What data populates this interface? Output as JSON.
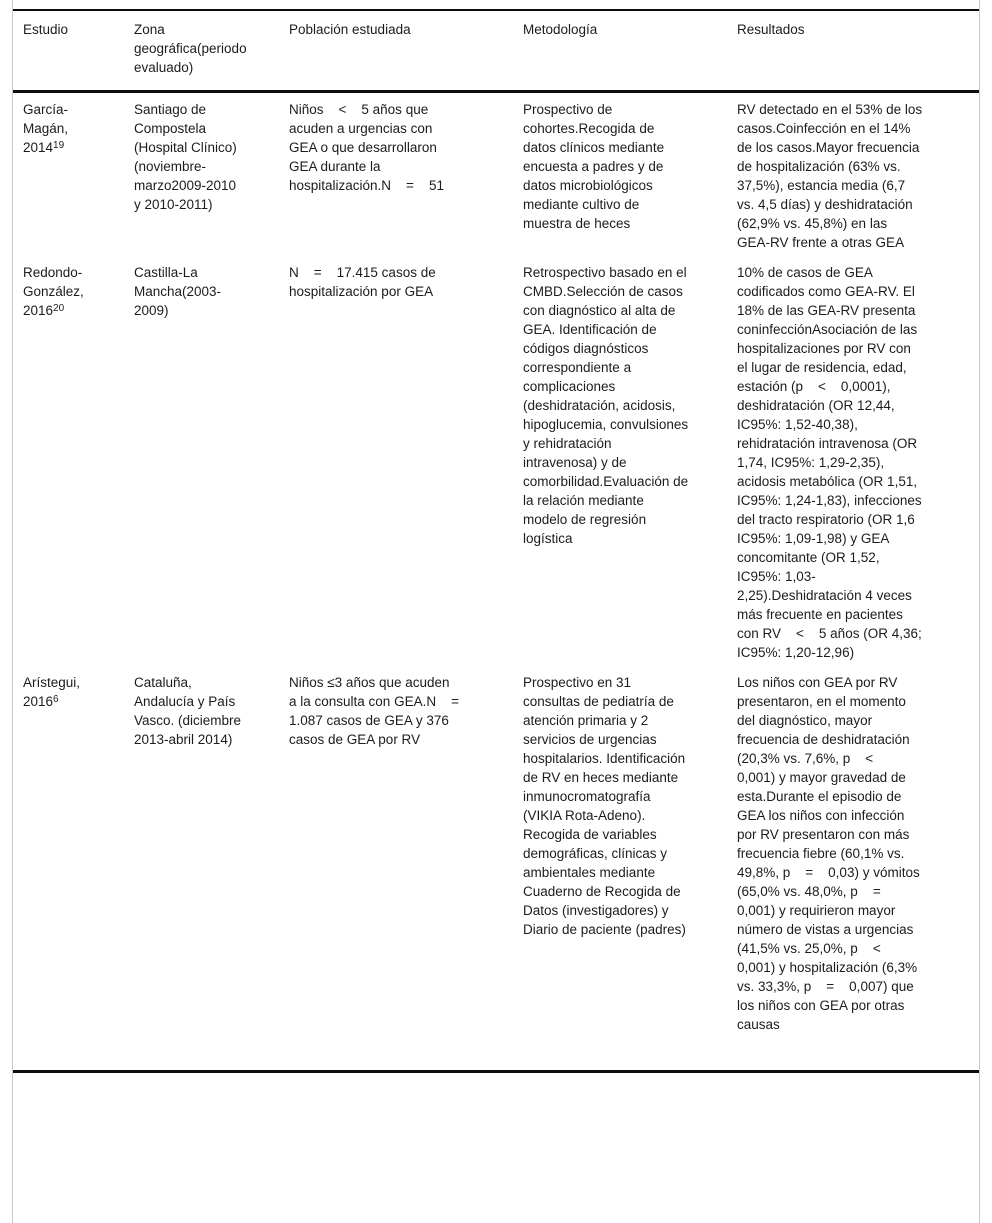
{
  "table": {
    "columns": [
      "Estudio",
      "Zona geográfica(periodo evaluado)",
      "Población estudiada",
      "Metodología",
      "Resultados"
    ],
    "rows": [
      {
        "estudio": "García-Magán, 2014",
        "estudio_ref": "19",
        "zona": "Santiago de Compostela (Hospital Clínico) (noviembre-marzo2009-2010 y 2010-2011)",
        "poblacion": "Niños    <    5 años que acuden a urgencias con GEA o que desarrollaron GEA durante la hospitalización.N    =    51",
        "metodologia": "Prospectivo de cohortes.Recogida de datos clínicos mediante encuesta a padres y de datos microbiológicos mediante cultivo de muestra de heces",
        "resultados": "RV detectado en el 53% de los casos.Coinfección en el 14% de los casos.Mayor frecuencia de hospitalización (63% vs. 37,5%), estancia media (6,7 vs. 4,5 días) y deshidratación (62,9% vs. 45,8%) en las GEA-RV frente a otras GEA"
      },
      {
        "estudio": "Redondo-González, 2016",
        "estudio_ref": "20",
        "zona": "Castilla-La Mancha(2003-2009)",
        "poblacion": "N    =    17.415 casos de hospitalización por GEA",
        "metodologia": "Retrospectivo basado en el CMBD.Selección de casos con diagnóstico al alta de GEA. Identificación de códigos diagnósticos correspondiente a complicaciones (deshidratación, acidosis, hipoglucemia, convulsiones y rehidratación intravenosa) y de comorbilidad.Evaluación de la relación mediante modelo de regresión logística",
        "resultados": "10% de casos de GEA codificados como GEA-RV. El 18% de las GEA-RV presenta coninfecciónAsociación de las hospitalizaciones por RV con el lugar de residencia, edad, estación (p    <    0,0001), deshidratación (OR 12,44, IC95%: 1,52-40,38), rehidratación intravenosa (OR 1,74, IC95%: 1,29-2,35), acidosis metabólica (OR 1,51, IC95%: 1,24-1,83), infecciones del tracto respiratorio (OR 1,6 IC95%: 1,09-1,98) y GEA concomitante (OR 1,52, IC95%: 1,03-2,25).Deshidratación 4 veces más frecuente en pacientes con RV    <    5 años (OR 4,36; IC95%: 1,20-12,96)"
      },
      {
        "estudio": "Arístegui, 2016",
        "estudio_ref": "6",
        "zona": "Cataluña, Andalucía y País Vasco. (diciembre 2013-abril 2014)",
        "poblacion": "Niños ≤3 años que acuden a la consulta con GEA.N    =    1.087 casos de GEA y 376 casos de GEA por RV",
        "metodologia": "Prospectivo en 31 consultas de pediatría de atención primaria y 2 servicios de urgencias hospitalarios. Identificación de RV en heces mediante inmunocromatografía (VIKIA Rota-Adeno). Recogida de variables demográficas, clínicas y ambientales mediante Cuaderno de Recogida de Datos (investigadores) y Diario de paciente (padres)",
        "resultados": "Los niños con GEA por RV presentaron, en el momento del diagnóstico, mayor frecuencia de deshidratación (20,3% vs. 7,6%, p    <    0,001) y mayor gravedad de esta.Durante el episodio de GEA los niños con infección por RV presentaron con más frecuencia fiebre (60,1% vs. 49,8%, p    =    0,03) y vómitos (65,0% vs. 48,0%, p    =    0,001) y requirieron mayor número de vistas a urgencias (41,5% vs. 25,0%, p    <    0,001) y hospitalización (6,3% vs. 33,3%, p    =    0,007) que los niños con GEA por otras causas"
      }
    ],
    "colors": {
      "rule": "#0d0d0d",
      "side_border": "#c8c8c8",
      "text": "#1c1c1c",
      "background": "#ffffff"
    }
  }
}
